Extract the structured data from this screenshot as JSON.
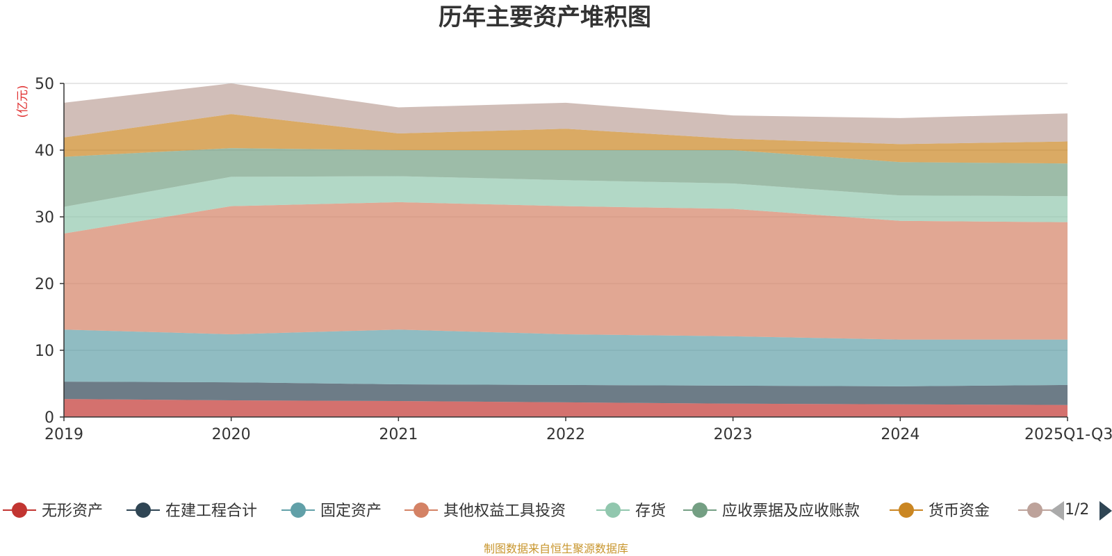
{
  "chart_data": {
    "type": "area",
    "stacked": true,
    "title": "历年主要资产堆积图",
    "unit_label": "(亿元)",
    "categories": [
      "2019",
      "2020",
      "2021",
      "2022",
      "2023",
      "2024",
      "2025Q1-Q3"
    ],
    "ylim": [
      0,
      50
    ],
    "yticks": [
      0,
      10,
      20,
      30,
      40,
      50
    ],
    "grid": true,
    "legend_position": "bottom",
    "series": [
      {
        "name": "无形资产",
        "color": "#c23531",
        "values": [
          2.7,
          2.5,
          2.4,
          2.2,
          2.0,
          1.9,
          1.8
        ]
      },
      {
        "name": "在建工程合计",
        "color": "#2f4554",
        "values": [
          2.6,
          2.7,
          2.5,
          2.6,
          2.7,
          2.7,
          3.0
        ]
      },
      {
        "name": "固定资产",
        "color": "#61a0a8",
        "values": [
          7.8,
          7.2,
          8.2,
          7.6,
          7.4,
          7.0,
          6.8
        ]
      },
      {
        "name": "其他权益工具投资",
        "color": "#d48265",
        "values": [
          14.4,
          19.2,
          19.1,
          19.2,
          19.1,
          17.8,
          17.6
        ]
      },
      {
        "name": "存货",
        "color": "#91c7ae",
        "values": [
          4.0,
          4.4,
          3.9,
          3.9,
          3.8,
          3.8,
          3.9
        ]
      },
      {
        "name": "应收票据及应收账款",
        "color": "#749f83",
        "values": [
          7.5,
          4.3,
          3.9,
          4.5,
          5.0,
          5.0,
          4.9
        ]
      },
      {
        "name": "货币资金",
        "color": "#ca8622",
        "values": [
          2.9,
          5.1,
          2.5,
          3.2,
          1.7,
          2.7,
          3.3
        ]
      },
      {
        "name": "",
        "color": "#bda29a",
        "values": [
          5.2,
          4.6,
          3.9,
          3.9,
          3.5,
          3.9,
          4.2
        ]
      }
    ]
  },
  "legend": {
    "page_indicator": "1/2"
  },
  "footer": {
    "source": "制图数据来自恒生聚源数据库"
  }
}
